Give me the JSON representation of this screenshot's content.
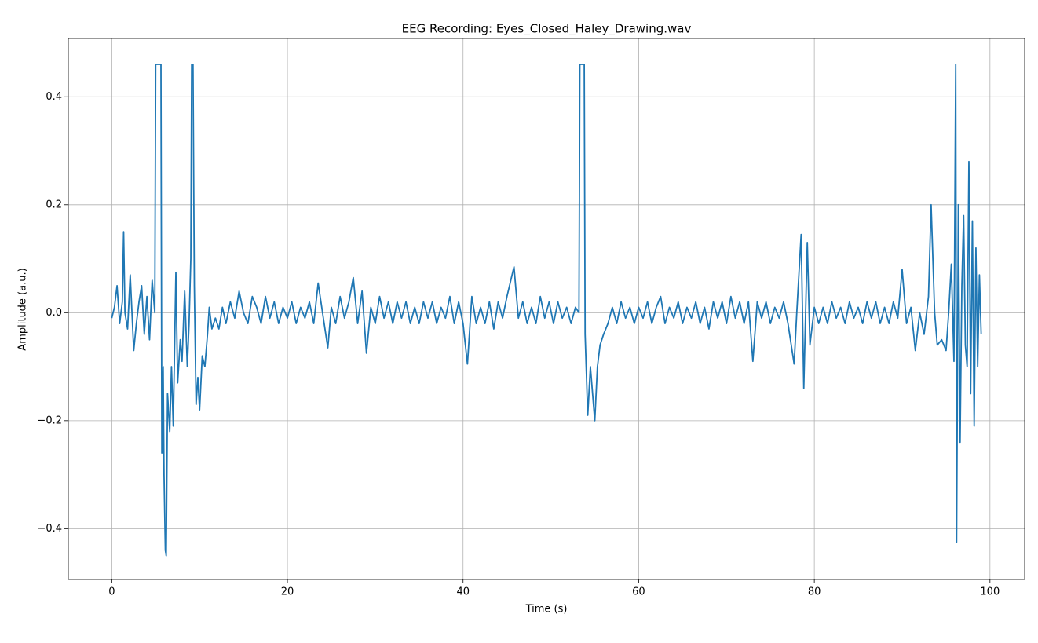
{
  "chart_data": {
    "type": "line",
    "title": "EEG Recording: Eyes_Closed_Haley_Drawing.wav",
    "x_label": "Time (s)",
    "y_label": "Amplitude (a.u.)",
    "color": "#1f77b4",
    "grid": true,
    "xlim": [
      -4.95,
      103.95
    ],
    "xticks": [
      0,
      20,
      40,
      60,
      80,
      100
    ],
    "ylim": [
      -0.494,
      0.508
    ],
    "yticks": [
      {
        "value": -0.4,
        "label": "−0.4"
      },
      {
        "value": -0.2,
        "label": "−0.2"
      },
      {
        "value": 0,
        "label": "0.0"
      },
      0.2,
      0.4
    ],
    "x": [
      0,
      0.3,
      0.6,
      0.9,
      1.2,
      1.35,
      1.5,
      1.8,
      2.1,
      2.5,
      2.8,
      3.1,
      3.4,
      3.7,
      4.0,
      4.3,
      4.6,
      4.9,
      5.0,
      5.6,
      5.7,
      5.85,
      5.95,
      6.1,
      6.2,
      6.35,
      6.6,
      6.8,
      7.0,
      7.3,
      7.5,
      7.8,
      8.0,
      8.3,
      8.6,
      8.8,
      9.0,
      9.1,
      9.25,
      9.4,
      9.6,
      9.8,
      10.0,
      10.3,
      10.6,
      10.9,
      11.1,
      11.4,
      11.8,
      12.2,
      12.6,
      13.0,
      13.5,
      14,
      14.5,
      15,
      15.5,
      16,
      16.5,
      17,
      17.5,
      18,
      18.5,
      19,
      19.5,
      20,
      20.5,
      21,
      21.5,
      22,
      22.5,
      23,
      23.5,
      24,
      24.6,
      25,
      25.5,
      26,
      26.5,
      27,
      27.5,
      28,
      28.5,
      29,
      29.5,
      30,
      30.5,
      31,
      31.5,
      32,
      32.5,
      33,
      33.5,
      34,
      34.5,
      35,
      35.5,
      36,
      36.5,
      37,
      37.5,
      38,
      38.5,
      39,
      39.5,
      40,
      40.5,
      41,
      41.5,
      42,
      42.5,
      43,
      43.5,
      44,
      44.5,
      45,
      45.8,
      46.3,
      46.8,
      47.3,
      47.8,
      48.3,
      48.8,
      49.3,
      49.8,
      50.3,
      50.8,
      51.3,
      51.8,
      52.3,
      52.8,
      53.2,
      53.3,
      53.8,
      53.9,
      54.2,
      54.5,
      54.8,
      55.0,
      55.3,
      55.6,
      56.0,
      56.5,
      57,
      57.5,
      58,
      58.5,
      59,
      59.5,
      60,
      60.5,
      61,
      61.5,
      62,
      62.5,
      63,
      63.5,
      64,
      64.5,
      65,
      65.5,
      66,
      66.5,
      67,
      67.5,
      68,
      68.5,
      69,
      69.5,
      70,
      70.5,
      71,
      71.5,
      72,
      72.5,
      73,
      73.5,
      74,
      74.5,
      75,
      75.5,
      76,
      76.5,
      77,
      77.7,
      78.0,
      78.5,
      78.8,
      79.2,
      79.5,
      80,
      80.5,
      81,
      81.5,
      82,
      82.5,
      83,
      83.5,
      84,
      84.5,
      85,
      85.5,
      86,
      86.5,
      87,
      87.5,
      88,
      88.5,
      89,
      89.5,
      90,
      90.5,
      91,
      91.5,
      92,
      92.5,
      93,
      93.3,
      93.7,
      94,
      94.5,
      95,
      95.3,
      95.6,
      95.9,
      96.1,
      96.2,
      96.4,
      96.6,
      96.8,
      97.0,
      97.2,
      97.4,
      97.6,
      97.8,
      98.0,
      98.2,
      98.4,
      98.6,
      98.8,
      99.0
    ],
    "values": [
      -0.01,
      0.01,
      0.05,
      -0.02,
      0.02,
      0.15,
      0.0,
      -0.03,
      0.07,
      -0.07,
      -0.02,
      0.02,
      0.05,
      -0.04,
      0.03,
      -0.05,
      0.06,
      0.0,
      0.46,
      0.46,
      -0.26,
      -0.1,
      -0.3,
      -0.44,
      -0.45,
      -0.15,
      -0.22,
      -0.1,
      -0.21,
      0.075,
      -0.13,
      -0.05,
      -0.09,
      0.04,
      -0.1,
      -0.02,
      0.1,
      0.46,
      0.46,
      0.05,
      -0.17,
      -0.12,
      -0.18,
      -0.08,
      -0.1,
      -0.04,
      0.01,
      -0.03,
      -0.01,
      -0.03,
      0.01,
      -0.02,
      0.02,
      -0.01,
      0.04,
      0.0,
      -0.02,
      0.03,
      0.01,
      -0.02,
      0.03,
      -0.01,
      0.02,
      -0.02,
      0.01,
      -0.01,
      0.02,
      -0.02,
      0.01,
      -0.01,
      0.02,
      -0.02,
      0.055,
      0.0,
      -0.065,
      0.01,
      -0.02,
      0.03,
      -0.01,
      0.02,
      0.065,
      -0.02,
      0.04,
      -0.075,
      0.01,
      -0.02,
      0.03,
      -0.01,
      0.02,
      -0.02,
      0.02,
      -0.01,
      0.02,
      -0.02,
      0.01,
      -0.02,
      0.02,
      -0.01,
      0.02,
      -0.02,
      0.01,
      -0.01,
      0.03,
      -0.02,
      0.02,
      -0.02,
      -0.095,
      0.03,
      -0.02,
      0.01,
      -0.02,
      0.02,
      -0.03,
      0.02,
      -0.01,
      0.03,
      0.085,
      -0.01,
      0.02,
      -0.02,
      0.01,
      -0.02,
      0.03,
      -0.01,
      0.02,
      -0.02,
      0.02,
      -0.01,
      0.01,
      -0.02,
      0.01,
      0.0,
      0.46,
      0.46,
      -0.04,
      -0.19,
      -0.1,
      -0.16,
      -0.2,
      -0.1,
      -0.06,
      -0.04,
      -0.02,
      0.01,
      -0.02,
      0.02,
      -0.01,
      0.01,
      -0.02,
      0.01,
      -0.01,
      0.02,
      -0.02,
      0.01,
      0.03,
      -0.02,
      0.01,
      -0.01,
      0.02,
      -0.02,
      0.01,
      -0.01,
      0.02,
      -0.02,
      0.01,
      -0.03,
      0.02,
      -0.01,
      0.02,
      -0.02,
      0.03,
      -0.01,
      0.02,
      -0.02,
      0.02,
      -0.09,
      0.02,
      -0.01,
      0.02,
      -0.02,
      0.01,
      -0.01,
      0.02,
      -0.02,
      -0.095,
      0.0,
      0.145,
      -0.14,
      0.13,
      -0.06,
      0.01,
      -0.02,
      0.01,
      -0.02,
      0.02,
      -0.01,
      0.01,
      -0.02,
      0.02,
      -0.01,
      0.01,
      -0.02,
      0.02,
      -0.01,
      0.02,
      -0.02,
      0.01,
      -0.02,
      0.02,
      -0.01,
      0.08,
      -0.02,
      0.01,
      -0.07,
      0.0,
      -0.04,
      0.03,
      0.2,
      0.0,
      -0.06,
      -0.05,
      -0.07,
      0.0,
      0.09,
      -0.09,
      0.46,
      -0.425,
      0.2,
      -0.24,
      0.05,
      0.18,
      -0.06,
      -0.1,
      0.28,
      -0.15,
      0.17,
      -0.21,
      0.12,
      -0.1,
      0.07,
      -0.04
    ]
  }
}
